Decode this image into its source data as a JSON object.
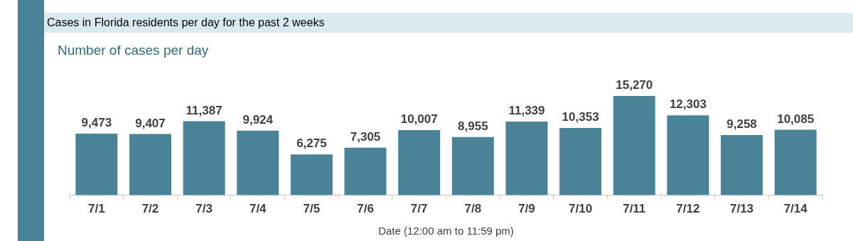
{
  "chart_data": {
    "type": "bar",
    "title": "Cases in Florida residents per day for the past 2 weeks",
    "subtitle": "Number of cases per day",
    "xlabel": "Date (12:00 am to 11:59 pm)",
    "categories": [
      "7/1",
      "7/2",
      "7/3",
      "7/4",
      "7/5",
      "7/6",
      "7/7",
      "7/8",
      "7/9",
      "7/10",
      "7/11",
      "7/12",
      "7/13",
      "7/14"
    ],
    "values": [
      9473,
      9407,
      11387,
      9924,
      6275,
      7305,
      10007,
      8955,
      11339,
      10353,
      15270,
      12303,
      9258,
      10085
    ],
    "value_labels": [
      "9,473",
      "9,407",
      "11,387",
      "9,924",
      "6,275",
      "7,305",
      "10,007",
      "8,955",
      "11,339",
      "10,353",
      "15,270",
      "12,303",
      "9,258",
      "10,085"
    ],
    "color": "#4a8398"
  }
}
